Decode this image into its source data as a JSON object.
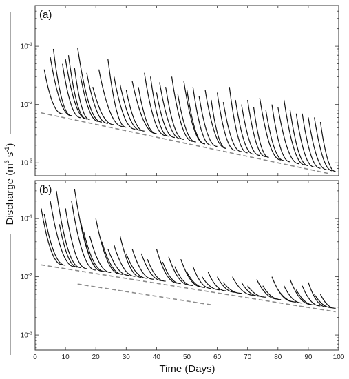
{
  "chart_data": {
    "type": "line",
    "ylabel_parts": {
      "base": "Discharge (m",
      "sup1": "3",
      "mid": " s",
      "sup2": "-1",
      "end": ")"
    },
    "xlabel": "Time (Days)",
    "xlim": [
      0,
      100
    ],
    "x_ticks": [
      "0",
      "10",
      "20",
      "30",
      "40",
      "50",
      "60",
      "70",
      "80",
      "90",
      "100"
    ],
    "y_scale": "log",
    "y_tick_values": [
      0.001,
      0.01,
      0.1
    ],
    "colors": {
      "recession": "#111111",
      "baseline": "#8a8a8a"
    },
    "panels": [
      {
        "label": "(a)",
        "ylim": [
          0.0006,
          0.5
        ],
        "baselines": [
          {
            "x": [
              2,
              97
            ],
            "y": [
              0.0072,
              0.00065
            ]
          }
        ],
        "curves": [
          {
            "x0": 3,
            "q0": 0.04,
            "dur": 6
          },
          {
            "x0": 5,
            "q0": 0.065,
            "dur": 7
          },
          {
            "x0": 6,
            "q0": 0.09,
            "dur": 6
          },
          {
            "x0": 9,
            "q0": 0.05,
            "dur": 6
          },
          {
            "x0": 10,
            "q0": 0.06,
            "dur": 7
          },
          {
            "x0": 11,
            "q0": 0.07,
            "dur": 6
          },
          {
            "x0": 13,
            "q0": 0.042,
            "dur": 5
          },
          {
            "x0": 14,
            "q0": 0.095,
            "dur": 8
          },
          {
            "x0": 15,
            "q0": 0.03,
            "dur": 6
          },
          {
            "x0": 17,
            "q0": 0.035,
            "dur": 7
          },
          {
            "x0": 19,
            "q0": 0.02,
            "dur": 7
          },
          {
            "x0": 21,
            "q0": 0.04,
            "dur": 8
          },
          {
            "x0": 24,
            "q0": 0.06,
            "dur": 6
          },
          {
            "x0": 26,
            "q0": 0.03,
            "dur": 7
          },
          {
            "x0": 28,
            "q0": 0.022,
            "dur": 7
          },
          {
            "x0": 30,
            "q0": 0.018,
            "dur": 6
          },
          {
            "x0": 32,
            "q0": 0.025,
            "dur": 8
          },
          {
            "x0": 34,
            "q0": 0.02,
            "dur": 6
          },
          {
            "x0": 36,
            "q0": 0.035,
            "dur": 7
          },
          {
            "x0": 38,
            "q0": 0.03,
            "dur": 6
          },
          {
            "x0": 40,
            "q0": 0.016,
            "dur": 6
          },
          {
            "x0": 41,
            "q0": 0.024,
            "dur": 7
          },
          {
            "x0": 43,
            "q0": 0.02,
            "dur": 6
          },
          {
            "x0": 45,
            "q0": 0.03,
            "dur": 7
          },
          {
            "x0": 47,
            "q0": 0.015,
            "dur": 6
          },
          {
            "x0": 49,
            "q0": 0.025,
            "dur": 7
          },
          {
            "x0": 50,
            "q0": 0.018,
            "dur": 6
          },
          {
            "x0": 52,
            "q0": 0.02,
            "dur": 6
          },
          {
            "x0": 54,
            "q0": 0.014,
            "dur": 6
          },
          {
            "x0": 56,
            "q0": 0.018,
            "dur": 7
          },
          {
            "x0": 58,
            "q0": 0.012,
            "dur": 5
          },
          {
            "x0": 60,
            "q0": 0.016,
            "dur": 6
          },
          {
            "x0": 62,
            "q0": 0.011,
            "dur": 6
          },
          {
            "x0": 64,
            "q0": 0.02,
            "dur": 6
          },
          {
            "x0": 66,
            "q0": 0.012,
            "dur": 6
          },
          {
            "x0": 68,
            "q0": 0.01,
            "dur": 6
          },
          {
            "x0": 70,
            "q0": 0.012,
            "dur": 6
          },
          {
            "x0": 72,
            "q0": 0.009,
            "dur": 5
          },
          {
            "x0": 74,
            "q0": 0.013,
            "dur": 7
          },
          {
            "x0": 76,
            "q0": 0.008,
            "dur": 6
          },
          {
            "x0": 78,
            "q0": 0.01,
            "dur": 6
          },
          {
            "x0": 80,
            "q0": 0.009,
            "dur": 7
          },
          {
            "x0": 82,
            "q0": 0.012,
            "dur": 7
          },
          {
            "x0": 84,
            "q0": 0.008,
            "dur": 6
          },
          {
            "x0": 86,
            "q0": 0.007,
            "dur": 6
          },
          {
            "x0": 88,
            "q0": 0.007,
            "dur": 6
          },
          {
            "x0": 90,
            "q0": 0.006,
            "dur": 6
          },
          {
            "x0": 92,
            "q0": 0.006,
            "dur": 6
          },
          {
            "x0": 94,
            "q0": 0.005,
            "dur": 5
          }
        ]
      },
      {
        "label": "(b)",
        "ylim": [
          0.00055,
          0.45
        ],
        "baselines": [
          {
            "x": [
              2,
              99
            ],
            "y": [
              0.016,
              0.0025
            ]
          },
          {
            "x": [
              14,
              58
            ],
            "y": [
              0.0075,
              0.0033
            ]
          }
        ],
        "curves": [
          {
            "x0": 2,
            "q0": 0.15,
            "dur": 7
          },
          {
            "x0": 3,
            "q0": 0.12,
            "dur": 7
          },
          {
            "x0": 5,
            "q0": 0.2,
            "dur": 8
          },
          {
            "x0": 7,
            "q0": 0.3,
            "dur": 8
          },
          {
            "x0": 8,
            "q0": 0.08,
            "dur": 6
          },
          {
            "x0": 10,
            "q0": 0.15,
            "dur": 7
          },
          {
            "x0": 12,
            "q0": 0.2,
            "dur": 8
          },
          {
            "x0": 13,
            "q0": 0.32,
            "dur": 9
          },
          {
            "x0": 15,
            "q0": 0.09,
            "dur": 7
          },
          {
            "x0": 16,
            "q0": 0.06,
            "dur": 7
          },
          {
            "x0": 18,
            "q0": 0.05,
            "dur": 7
          },
          {
            "x0": 20,
            "q0": 0.1,
            "dur": 8
          },
          {
            "x0": 22,
            "q0": 0.04,
            "dur": 7
          },
          {
            "x0": 24,
            "q0": 0.03,
            "dur": 7
          },
          {
            "x0": 26,
            "q0": 0.035,
            "dur": 7
          },
          {
            "x0": 28,
            "q0": 0.05,
            "dur": 7
          },
          {
            "x0": 30,
            "q0": 0.025,
            "dur": 7
          },
          {
            "x0": 32,
            "q0": 0.03,
            "dur": 7
          },
          {
            "x0": 35,
            "q0": 0.025,
            "dur": 7
          },
          {
            "x0": 37,
            "q0": 0.02,
            "dur": 6
          },
          {
            "x0": 40,
            "q0": 0.03,
            "dur": 7
          },
          {
            "x0": 42,
            "q0": 0.018,
            "dur": 6
          },
          {
            "x0": 44,
            "q0": 0.022,
            "dur": 7
          },
          {
            "x0": 46,
            "q0": 0.015,
            "dur": 6
          },
          {
            "x0": 48,
            "q0": 0.02,
            "dur": 7
          },
          {
            "x0": 50,
            "q0": 0.012,
            "dur": 6
          },
          {
            "x0": 52,
            "q0": 0.015,
            "dur": 6
          },
          {
            "x0": 55,
            "q0": 0.01,
            "dur": 6
          },
          {
            "x0": 57,
            "q0": 0.012,
            "dur": 6
          },
          {
            "x0": 60,
            "q0": 0.01,
            "dur": 6
          },
          {
            "x0": 62,
            "q0": 0.008,
            "dur": 6
          },
          {
            "x0": 65,
            "q0": 0.01,
            "dur": 7
          },
          {
            "x0": 68,
            "q0": 0.008,
            "dur": 6
          },
          {
            "x0": 70,
            "q0": 0.007,
            "dur": 6
          },
          {
            "x0": 73,
            "q0": 0.009,
            "dur": 7
          },
          {
            "x0": 75,
            "q0": 0.007,
            "dur": 6
          },
          {
            "x0": 78,
            "q0": 0.01,
            "dur": 7
          },
          {
            "x0": 80,
            "q0": 0.006,
            "dur": 6
          },
          {
            "x0": 82,
            "q0": 0.007,
            "dur": 6
          },
          {
            "x0": 84,
            "q0": 0.009,
            "dur": 7
          },
          {
            "x0": 86,
            "q0": 0.006,
            "dur": 6
          },
          {
            "x0": 88,
            "q0": 0.007,
            "dur": 6
          },
          {
            "x0": 90,
            "q0": 0.008,
            "dur": 6
          },
          {
            "x0": 92,
            "q0": 0.005,
            "dur": 6
          },
          {
            "x0": 94,
            "q0": 0.005,
            "dur": 5
          }
        ]
      }
    ]
  }
}
